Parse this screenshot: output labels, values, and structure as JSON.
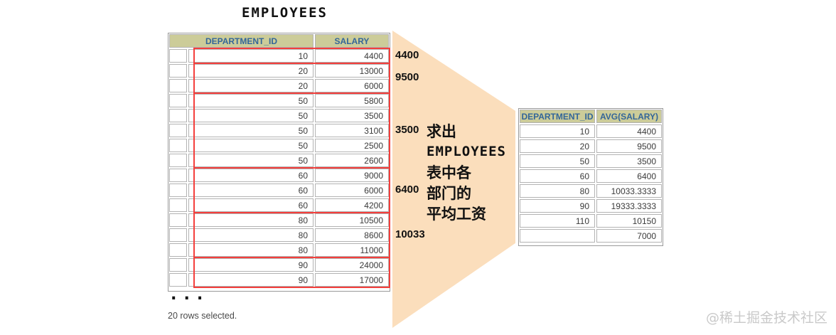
{
  "title": "EMPLOYEES",
  "left_table": {
    "headers": [
      "DEPARTMENT_ID",
      "SALARY"
    ],
    "rows": [
      [
        "10",
        "4400"
      ],
      [
        "20",
        "13000"
      ],
      [
        "20",
        "6000"
      ],
      [
        "50",
        "5800"
      ],
      [
        "50",
        "3500"
      ],
      [
        "50",
        "3100"
      ],
      [
        "50",
        "2500"
      ],
      [
        "50",
        "2600"
      ],
      [
        "60",
        "9000"
      ],
      [
        "60",
        "6000"
      ],
      [
        "60",
        "4200"
      ],
      [
        "80",
        "10500"
      ],
      [
        "80",
        "8600"
      ],
      [
        "80",
        "11000"
      ],
      [
        "90",
        "24000"
      ],
      [
        "90",
        "17000"
      ]
    ],
    "groups": [
      {
        "start": 0,
        "count": 1,
        "avg": "4400"
      },
      {
        "start": 1,
        "count": 2,
        "avg": "9500"
      },
      {
        "start": 3,
        "count": 5,
        "avg": "3500"
      },
      {
        "start": 8,
        "count": 3,
        "avg": "6400"
      },
      {
        "start": 11,
        "count": 3,
        "avg": "10033"
      },
      {
        "start": 14,
        "count": 2,
        "avg": null
      }
    ],
    "ellipsis": "...",
    "footer": "20 rows selected."
  },
  "question": {
    "lines": [
      "求出",
      "EMPLOYEES",
      "表中各",
      "部门的",
      "平均工资"
    ]
  },
  "right_table": {
    "headers": [
      "DEPARTMENT_ID",
      "AVG(SALARY)"
    ],
    "rows": [
      [
        "10",
        "4400"
      ],
      [
        "20",
        "9500"
      ],
      [
        "50",
        "3500"
      ],
      [
        "60",
        "6400"
      ],
      [
        "80",
        "10033.3333"
      ],
      [
        "90",
        "19333.3333"
      ],
      [
        "110",
        "10150"
      ],
      [
        "",
        "7000"
      ]
    ]
  },
  "watermark": "@稀土掘金技术社区",
  "colors": {
    "header_bg": "#cccc99",
    "header_text": "#336699",
    "group_box": "#f43f3c",
    "funnel": "#fbdebc"
  }
}
